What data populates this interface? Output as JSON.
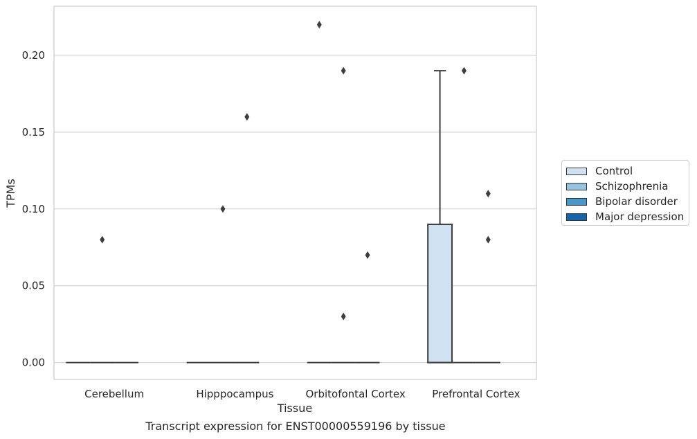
{
  "chart_data": {
    "type": "box",
    "title": "Transcript expression for ENST00000559196 by tissue",
    "xlabel": "Tissue",
    "ylabel": "TPMs",
    "ylim": [
      -0.011,
      0.232
    ],
    "yticks": [
      "0.00",
      "0.05",
      "0.10",
      "0.15",
      "0.20"
    ],
    "categories": [
      "Cerebellum",
      "Hipppocampus",
      "Orbitofontal Cortex",
      "Prefrontal Cortex"
    ],
    "grid": true,
    "legend_position": "right",
    "series": [
      {
        "name": "Control",
        "color": "#d0e1f2",
        "boxes": [
          {
            "q1": 0,
            "median": 0,
            "q3": 0,
            "whisker_low": 0,
            "whisker_high": 0
          },
          {
            "q1": 0,
            "median": 0,
            "q3": 0,
            "whisker_low": 0,
            "whisker_high": 0
          },
          {
            "q1": 0,
            "median": 0,
            "q3": 0,
            "whisker_low": 0,
            "whisker_high": 0
          },
          {
            "q1": 0,
            "median": 0,
            "q3": 0.09,
            "whisker_low": 0,
            "whisker_high": 0.19
          }
        ],
        "outliers": [
          [],
          [],
          [
            0.22
          ],
          []
        ]
      },
      {
        "name": "Schizophrenia",
        "color": "#94c4df",
        "boxes": [
          {
            "q1": 0,
            "median": 0,
            "q3": 0,
            "whisker_low": 0,
            "whisker_high": 0
          },
          {
            "q1": 0,
            "median": 0,
            "q3": 0,
            "whisker_low": 0,
            "whisker_high": 0
          },
          {
            "q1": 0,
            "median": 0,
            "q3": 0,
            "whisker_low": 0,
            "whisker_high": 0
          },
          {
            "q1": 0,
            "median": 0,
            "q3": 0,
            "whisker_low": 0,
            "whisker_high": 0
          }
        ],
        "outliers": [
          [
            0.08
          ],
          [
            0.1
          ],
          [
            0.19,
            0.03
          ],
          [
            0.19
          ]
        ]
      },
      {
        "name": "Bipolar disorder",
        "color": "#4a98c9",
        "boxes": [
          {
            "q1": 0,
            "median": 0,
            "q3": 0,
            "whisker_low": 0,
            "whisker_high": 0
          },
          {
            "q1": 0,
            "median": 0,
            "q3": 0,
            "whisker_low": 0,
            "whisker_high": 0
          },
          {
            "q1": 0,
            "median": 0,
            "q3": 0,
            "whisker_low": 0,
            "whisker_high": 0
          },
          {
            "q1": 0,
            "median": 0,
            "q3": 0,
            "whisker_low": 0,
            "whisker_high": 0
          }
        ],
        "outliers": [
          [],
          [
            0.16
          ],
          [
            0.07
          ],
          [
            0.11,
            0.08
          ]
        ]
      },
      {
        "name": "Major depression",
        "color": "#1764ab",
        "boxes": [
          null,
          null,
          null,
          null
        ],
        "outliers": [
          [],
          [],
          [],
          []
        ]
      }
    ]
  }
}
